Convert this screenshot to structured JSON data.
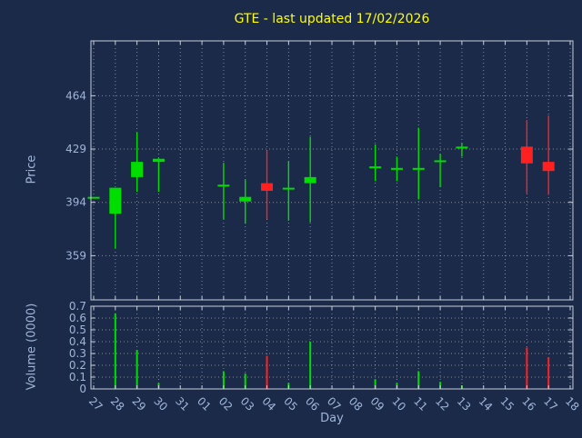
{
  "colors": {
    "background": "#1b2a48",
    "axis_text": "#9fb6d8",
    "title_text": "#ffff00",
    "grid": "#ffffff",
    "border": "#c7cfdb",
    "up": "#00dd00",
    "down": "#ff2020"
  },
  "chart_data": [
    {
      "type": "candlestick",
      "title": "GTE - last updated 17/02/2026",
      "xlabel": "Day",
      "ylabel": "Price",
      "x_categories": [
        "27",
        "28",
        "29",
        "30",
        "31",
        "01",
        "02",
        "03",
        "04",
        "05",
        "06",
        "07",
        "08",
        "09",
        "10",
        "11",
        "12",
        "13",
        "14",
        "15",
        "16",
        "17",
        "18"
      ],
      "ylim": [
        330,
        500
      ],
      "yticks": [
        359,
        394,
        429,
        464
      ],
      "grid": "dotted",
      "candles": [
        {
          "day": "27",
          "open": 397,
          "high": 397,
          "low": 397,
          "close": 397
        },
        {
          "day": "28",
          "open": 386,
          "high": 403,
          "low": 364,
          "close": 403
        },
        {
          "day": "29",
          "open": 410,
          "high": 440,
          "low": 401,
          "close": 420
        },
        {
          "day": "30",
          "open": 420,
          "high": 423,
          "low": 401,
          "close": 422
        },
        {
          "day": "02",
          "open": 404,
          "high": 420,
          "low": 383,
          "close": 405
        },
        {
          "day": "03",
          "open": 394,
          "high": 409,
          "low": 380,
          "close": 397
        },
        {
          "day": "04",
          "open": 406,
          "high": 428,
          "low": 383,
          "close": 401
        },
        {
          "day": "05",
          "open": 402,
          "high": 421,
          "low": 382,
          "close": 403
        },
        {
          "day": "06",
          "open": 406,
          "high": 437,
          "low": 381,
          "close": 410
        },
        {
          "day": "09",
          "open": 416,
          "high": 432,
          "low": 408,
          "close": 417
        },
        {
          "day": "10",
          "open": 416,
          "high": 424,
          "low": 408,
          "close": 416
        },
        {
          "day": "11",
          "open": 416,
          "high": 443,
          "low": 396,
          "close": 416
        },
        {
          "day": "12",
          "open": 420,
          "high": 426,
          "low": 404,
          "close": 421
        },
        {
          "day": "13",
          "open": 429,
          "high": 433,
          "low": 424,
          "close": 430
        },
        {
          "day": "16",
          "open": 430,
          "high": 448,
          "low": 400,
          "close": 419
        },
        {
          "day": "17",
          "open": 420,
          "high": 451,
          "low": 399,
          "close": 414
        }
      ]
    },
    {
      "type": "bar",
      "xlabel": "Day",
      "ylabel": "Volume (0000)",
      "ylim": [
        0,
        0.7
      ],
      "yticks": [
        "0",
        "0.1",
        "0.2",
        "0.3",
        "0.4",
        "0.5",
        "0.6",
        "0.7"
      ],
      "bars": [
        {
          "day": "28",
          "value": 0.64,
          "direction": "up"
        },
        {
          "day": "29",
          "value": 0.33,
          "direction": "up"
        },
        {
          "day": "30",
          "value": 0.05,
          "direction": "up"
        },
        {
          "day": "02",
          "value": 0.15,
          "direction": "up"
        },
        {
          "day": "03",
          "value": 0.13,
          "direction": "up"
        },
        {
          "day": "04",
          "value": 0.28,
          "direction": "down"
        },
        {
          "day": "05",
          "value": 0.05,
          "direction": "up"
        },
        {
          "day": "06",
          "value": 0.4,
          "direction": "up"
        },
        {
          "day": "09",
          "value": 0.08,
          "direction": "up"
        },
        {
          "day": "10",
          "value": 0.05,
          "direction": "up"
        },
        {
          "day": "11",
          "value": 0.15,
          "direction": "up"
        },
        {
          "day": "12",
          "value": 0.06,
          "direction": "up"
        },
        {
          "day": "13",
          "value": 0.03,
          "direction": "up"
        },
        {
          "day": "16",
          "value": 0.35,
          "direction": "down"
        },
        {
          "day": "17",
          "value": 0.27,
          "direction": "down"
        }
      ]
    }
  ]
}
